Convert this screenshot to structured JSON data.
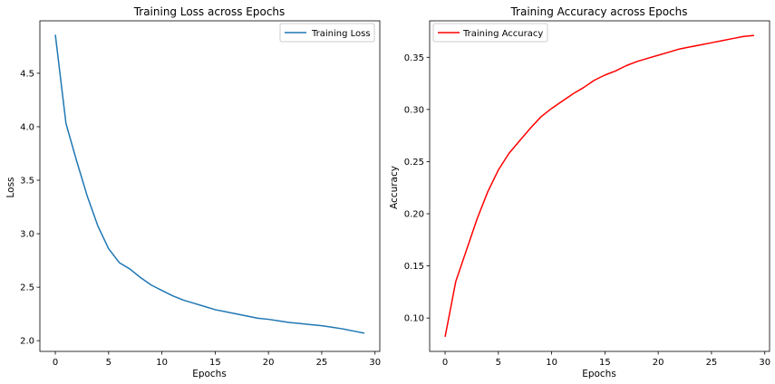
{
  "chart_data": [
    {
      "type": "line",
      "title": "Training Loss across Epochs",
      "xlabel": "Epochs",
      "ylabel": "Loss",
      "xlim": [
        -1.45,
        30.45
      ],
      "ylim": [
        1.9,
        4.99
      ],
      "xticks": [
        0,
        5,
        10,
        15,
        20,
        25,
        30
      ],
      "yticks": [
        2.0,
        2.5,
        3.0,
        3.5,
        4.0,
        4.5
      ],
      "xtick_labels": [
        "0",
        "5",
        "10",
        "15",
        "20",
        "25",
        "30"
      ],
      "ytick_labels": [
        "2.0",
        "2.5",
        "3.0",
        "3.5",
        "4.0",
        "4.5"
      ],
      "grid": false,
      "legend_position": "upper right",
      "series": [
        {
          "name": "Training Loss",
          "color": "#1f77b4",
          "x": [
            0,
            1,
            2,
            3,
            4,
            5,
            6,
            7,
            8,
            9,
            10,
            11,
            12,
            13,
            14,
            15,
            16,
            17,
            18,
            19,
            20,
            21,
            22,
            23,
            24,
            25,
            26,
            27,
            28,
            29
          ],
          "y": [
            4.86,
            4.03,
            3.68,
            3.35,
            3.07,
            2.86,
            2.73,
            2.67,
            2.59,
            2.52,
            2.47,
            2.42,
            2.38,
            2.35,
            2.32,
            2.29,
            2.27,
            2.25,
            2.23,
            2.21,
            2.2,
            2.185,
            2.17,
            2.16,
            2.15,
            2.14,
            2.125,
            2.11,
            2.09,
            2.07
          ]
        }
      ]
    },
    {
      "type": "line",
      "title": "Training Accuracy across Epochs",
      "xlabel": "Epochs",
      "ylabel": "Accuracy",
      "xlim": [
        -1.45,
        30.45
      ],
      "ylim": [
        0.068,
        0.385
      ],
      "xticks": [
        0,
        5,
        10,
        15,
        20,
        25,
        30
      ],
      "yticks": [
        0.1,
        0.15,
        0.2,
        0.25,
        0.3,
        0.35
      ],
      "xtick_labels": [
        "0",
        "5",
        "10",
        "15",
        "20",
        "25",
        "30"
      ],
      "ytick_labels": [
        "0.10",
        "0.15",
        "0.20",
        "0.25",
        "0.30",
        "0.35"
      ],
      "grid": false,
      "legend_position": "upper left",
      "series": [
        {
          "name": "Training Accuracy",
          "color": "#ff0000",
          "x": [
            0,
            1,
            2,
            3,
            4,
            5,
            6,
            7,
            8,
            9,
            10,
            11,
            12,
            13,
            14,
            15,
            16,
            17,
            18,
            19,
            20,
            21,
            22,
            23,
            24,
            25,
            26,
            27,
            28,
            29
          ],
          "y": [
            0.082,
            0.135,
            0.165,
            0.195,
            0.221,
            0.242,
            0.258,
            0.27,
            0.282,
            0.293,
            0.301,
            0.308,
            0.315,
            0.321,
            0.328,
            0.333,
            0.337,
            0.342,
            0.346,
            0.349,
            0.352,
            0.355,
            0.358,
            0.36,
            0.362,
            0.364,
            0.366,
            0.368,
            0.37,
            0.371
          ]
        }
      ]
    }
  ]
}
